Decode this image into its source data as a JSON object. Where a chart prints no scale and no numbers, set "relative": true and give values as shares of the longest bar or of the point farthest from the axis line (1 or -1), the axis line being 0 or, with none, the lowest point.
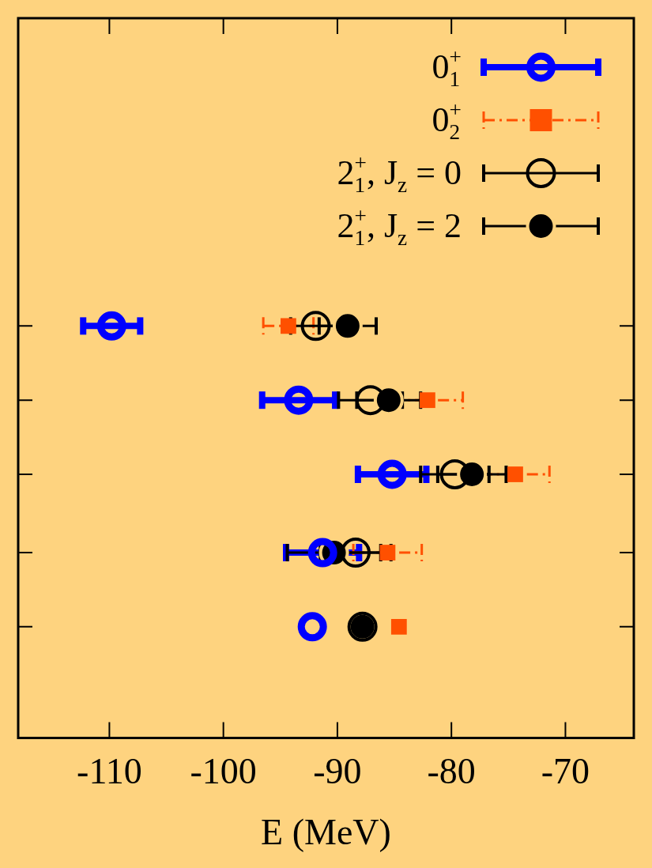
{
  "chart_data": {
    "type": "scatter",
    "relative": true,
    "xlabel": "E (MeV)",
    "xlim": [
      -118,
      -64
    ],
    "xticks": [
      -110,
      -100,
      -90,
      -80,
      -70
    ],
    "grid": false,
    "legend": "top right",
    "series": [
      {
        "name": "0$^{+}$$_{1}$",
        "color": "#0000ff",
        "marker": "circle",
        "line_style": "solid",
        "x": [
          -109.8,
          -93.4,
          -85.2,
          -91.3,
          -92.2
        ],
        "values": [
          1,
          0.82,
          0.64,
          0.45,
          0.27
        ],
        "xerrors": [
          2.5,
          3.2,
          3.0,
          3.2,
          null
        ]
      },
      {
        "name": "0$^{+}$$_{2}$",
        "color": "#ff5000",
        "marker": "square",
        "line_style": "dashed",
        "x": [
          -94.3,
          -82.1,
          -74.4,
          -85.6,
          -84.6
        ],
        "values": [
          1,
          0.82,
          0.64,
          0.45,
          0.27
        ],
        "xerrors": [
          2.2,
          3.1,
          3.0,
          3.0,
          null
        ]
      },
      {
        "name": "2$^{+}$$_{1}$, J$_{z}$ = 0",
        "color": "#000000",
        "marker": "circle",
        "line_style": "solid",
        "x": [
          -91.9,
          -87.1,
          -79.7,
          -88.4,
          -87.8
        ],
        "values": [
          1,
          0.82,
          0.64,
          0.45,
          0.27
        ],
        "xerrors": [
          2.2,
          2.8,
          3.0,
          3.1,
          null
        ]
      },
      {
        "name": "2$^{+}$$_{1}$, J$_{z}$ = 2",
        "color": "#000000",
        "marker": "circle",
        "line_style": "solid",
        "x": [
          -89.1,
          -85.5,
          -78.2,
          -90.3,
          -87.8
        ],
        "values": [
          1,
          0.82,
          0.64,
          0.45,
          0.27
        ],
        "xerrors": [
          2.5,
          2.8,
          3.0,
          4.1,
          null
        ]
      }
    ]
  }
}
